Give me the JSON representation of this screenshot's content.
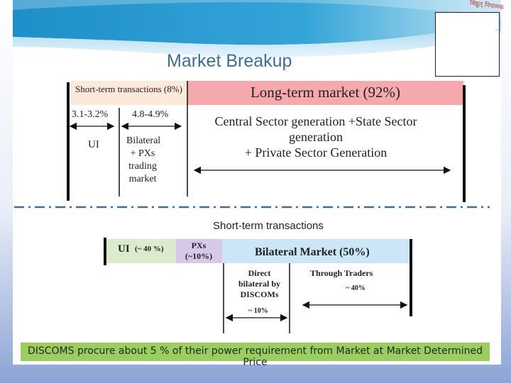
{
  "slide": {
    "title": "Market Breakup",
    "logo_text": "विद्युत् नियामक",
    "logo_sub": "...",
    "colors": {
      "title": "#3a6f96",
      "banner_wave": "#1e8fc8",
      "long_box": "#f5a9ad",
      "short_box": "#fbe9d9",
      "ui_box": "#dbeccd",
      "px_box": "#d7c7e8",
      "bilateral_box": "#cbe7f7",
      "footer_banner": "#9bce5e"
    }
  },
  "top_diagram": {
    "short_term_label": "Short-term transactions (8%)",
    "long_term_label": "Long-term market (92%)",
    "ui_range": "3.1-3.2%",
    "bilateral_range": "4.8-4.9%",
    "ui_label": "UI",
    "bilateral_label": "Bilateral + PXs trading market",
    "long_term_desc_line1": "Central Sector generation +State Sector",
    "long_term_desc_line2": "generation",
    "long_term_desc_line3": "+ Private Sector Generation"
  },
  "bottom_diagram": {
    "heading": "Short-term transactions",
    "ui_label": "UI",
    "ui_pct": "(~ 40 %)",
    "px_label_line1": "PXs",
    "px_label_line2": "(~10%)",
    "bilateral_label": "Bilateral Market (50%)",
    "direct_label": "Direct bilateral by DISCOMs",
    "direct_pct": "~ 10%",
    "traders_label": "Through Traders",
    "traders_pct": "~ 40%"
  },
  "footer": {
    "text": "DISCOMS procure about 5 % of their power requirement from Market at Market Determined Price"
  }
}
